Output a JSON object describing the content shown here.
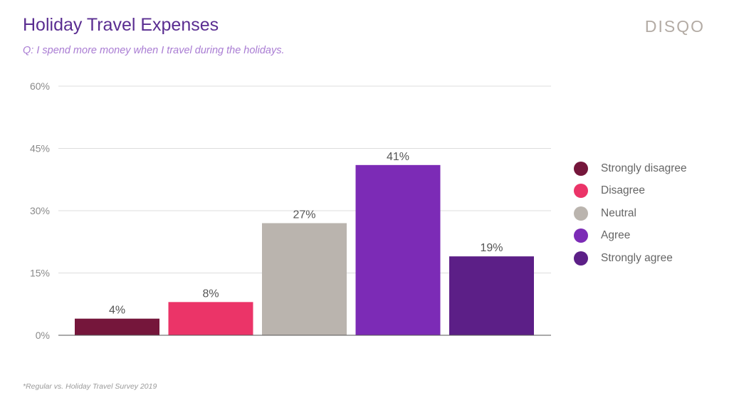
{
  "header": {
    "title": "Holiday Travel Expenses",
    "subtitle": "Q: I spend more money when I travel during the holidays.",
    "brand": "DISQO"
  },
  "footnote": "*Regular vs. Holiday Travel Survey 2019",
  "colors": {
    "title": "#5a2d91",
    "subtitle": "#a97cd3",
    "brand": "#b3aba4",
    "gridline": "#dddddd",
    "axis": "#555555"
  },
  "chart_data": {
    "type": "bar",
    "title": "Holiday Travel Expenses",
    "subtitle": "Q: I spend more money when I travel during the holidays.",
    "xlabel": "",
    "ylabel": "",
    "categories": [
      "Strongly disagree",
      "Disagree",
      "Neutral",
      "Agree",
      "Strongly agree"
    ],
    "values": [
      4,
      8,
      27,
      41,
      19
    ],
    "value_labels": [
      "4%",
      "8%",
      "27%",
      "41%",
      "19%"
    ],
    "colors": [
      "#75163b",
      "#eb3468",
      "#bab4ae",
      "#7c2bb6",
      "#5c1f87"
    ],
    "ylim": [
      0,
      60
    ],
    "yticks": [
      0,
      15,
      30,
      45,
      60
    ],
    "ytick_labels": [
      "0%",
      "15%",
      "30%",
      "45%",
      "60%"
    ],
    "grid": true,
    "legend": {
      "position": "right",
      "entries": [
        "Strongly disagree",
        "Disagree",
        "Neutral",
        "Agree",
        "Strongly agree"
      ]
    }
  }
}
